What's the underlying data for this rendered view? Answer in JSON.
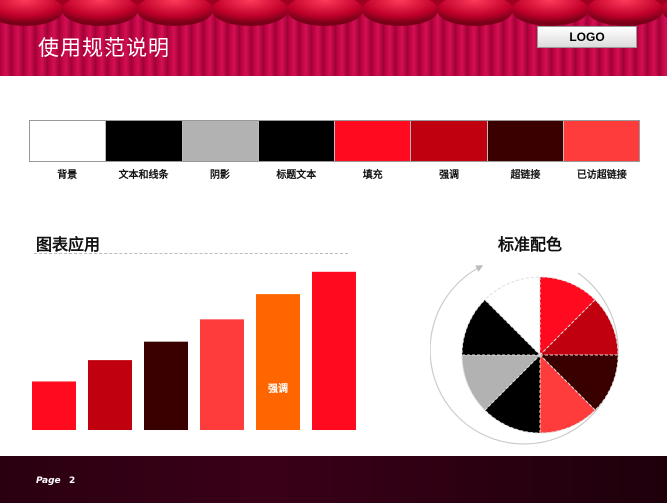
{
  "header": {
    "title": "使用规范说明",
    "logo": "LOGO"
  },
  "palette": [
    {
      "label": "背景",
      "color": "#ffffff"
    },
    {
      "label": "文本和线条",
      "color": "#000000"
    },
    {
      "label": "阴影",
      "color": "#b2b2b2"
    },
    {
      "label": "标题文本",
      "color": "#000000"
    },
    {
      "label": "填充",
      "color": "#ff0a1e"
    },
    {
      "label": "强调",
      "color": "#c0000e"
    },
    {
      "label": "超链接",
      "color": "#3a0000"
    },
    {
      "label": "已访超链接",
      "color": "#ff3c3c"
    }
  ],
  "sections": {
    "chart_title": "图表应用",
    "pie_title": "标准配色"
  },
  "chart_data": {
    "type": "bar",
    "categories": [
      "",
      "",
      "",
      "",
      "",
      ""
    ],
    "values": [
      50,
      72,
      91,
      114,
      140,
      163
    ],
    "colors": [
      "#ff0a1e",
      "#c0000e",
      "#3a0000",
      "#ff3c3c",
      "#ff6600",
      "#ff0a1e"
    ],
    "bar_labels": [
      "",
      "",
      "",
      "",
      "强调",
      ""
    ],
    "title": "",
    "xlabel": "",
    "ylabel": "",
    "ylim": [
      0,
      170
    ]
  },
  "pie": {
    "slices": [
      "#ffffff",
      "#ff0a1e",
      "#c0000e",
      "#3a0000",
      "#ff3c3c",
      "#000000",
      "#b2b2b2",
      "#000000"
    ]
  },
  "footer": {
    "page_label": "Page",
    "page_number": "2"
  }
}
